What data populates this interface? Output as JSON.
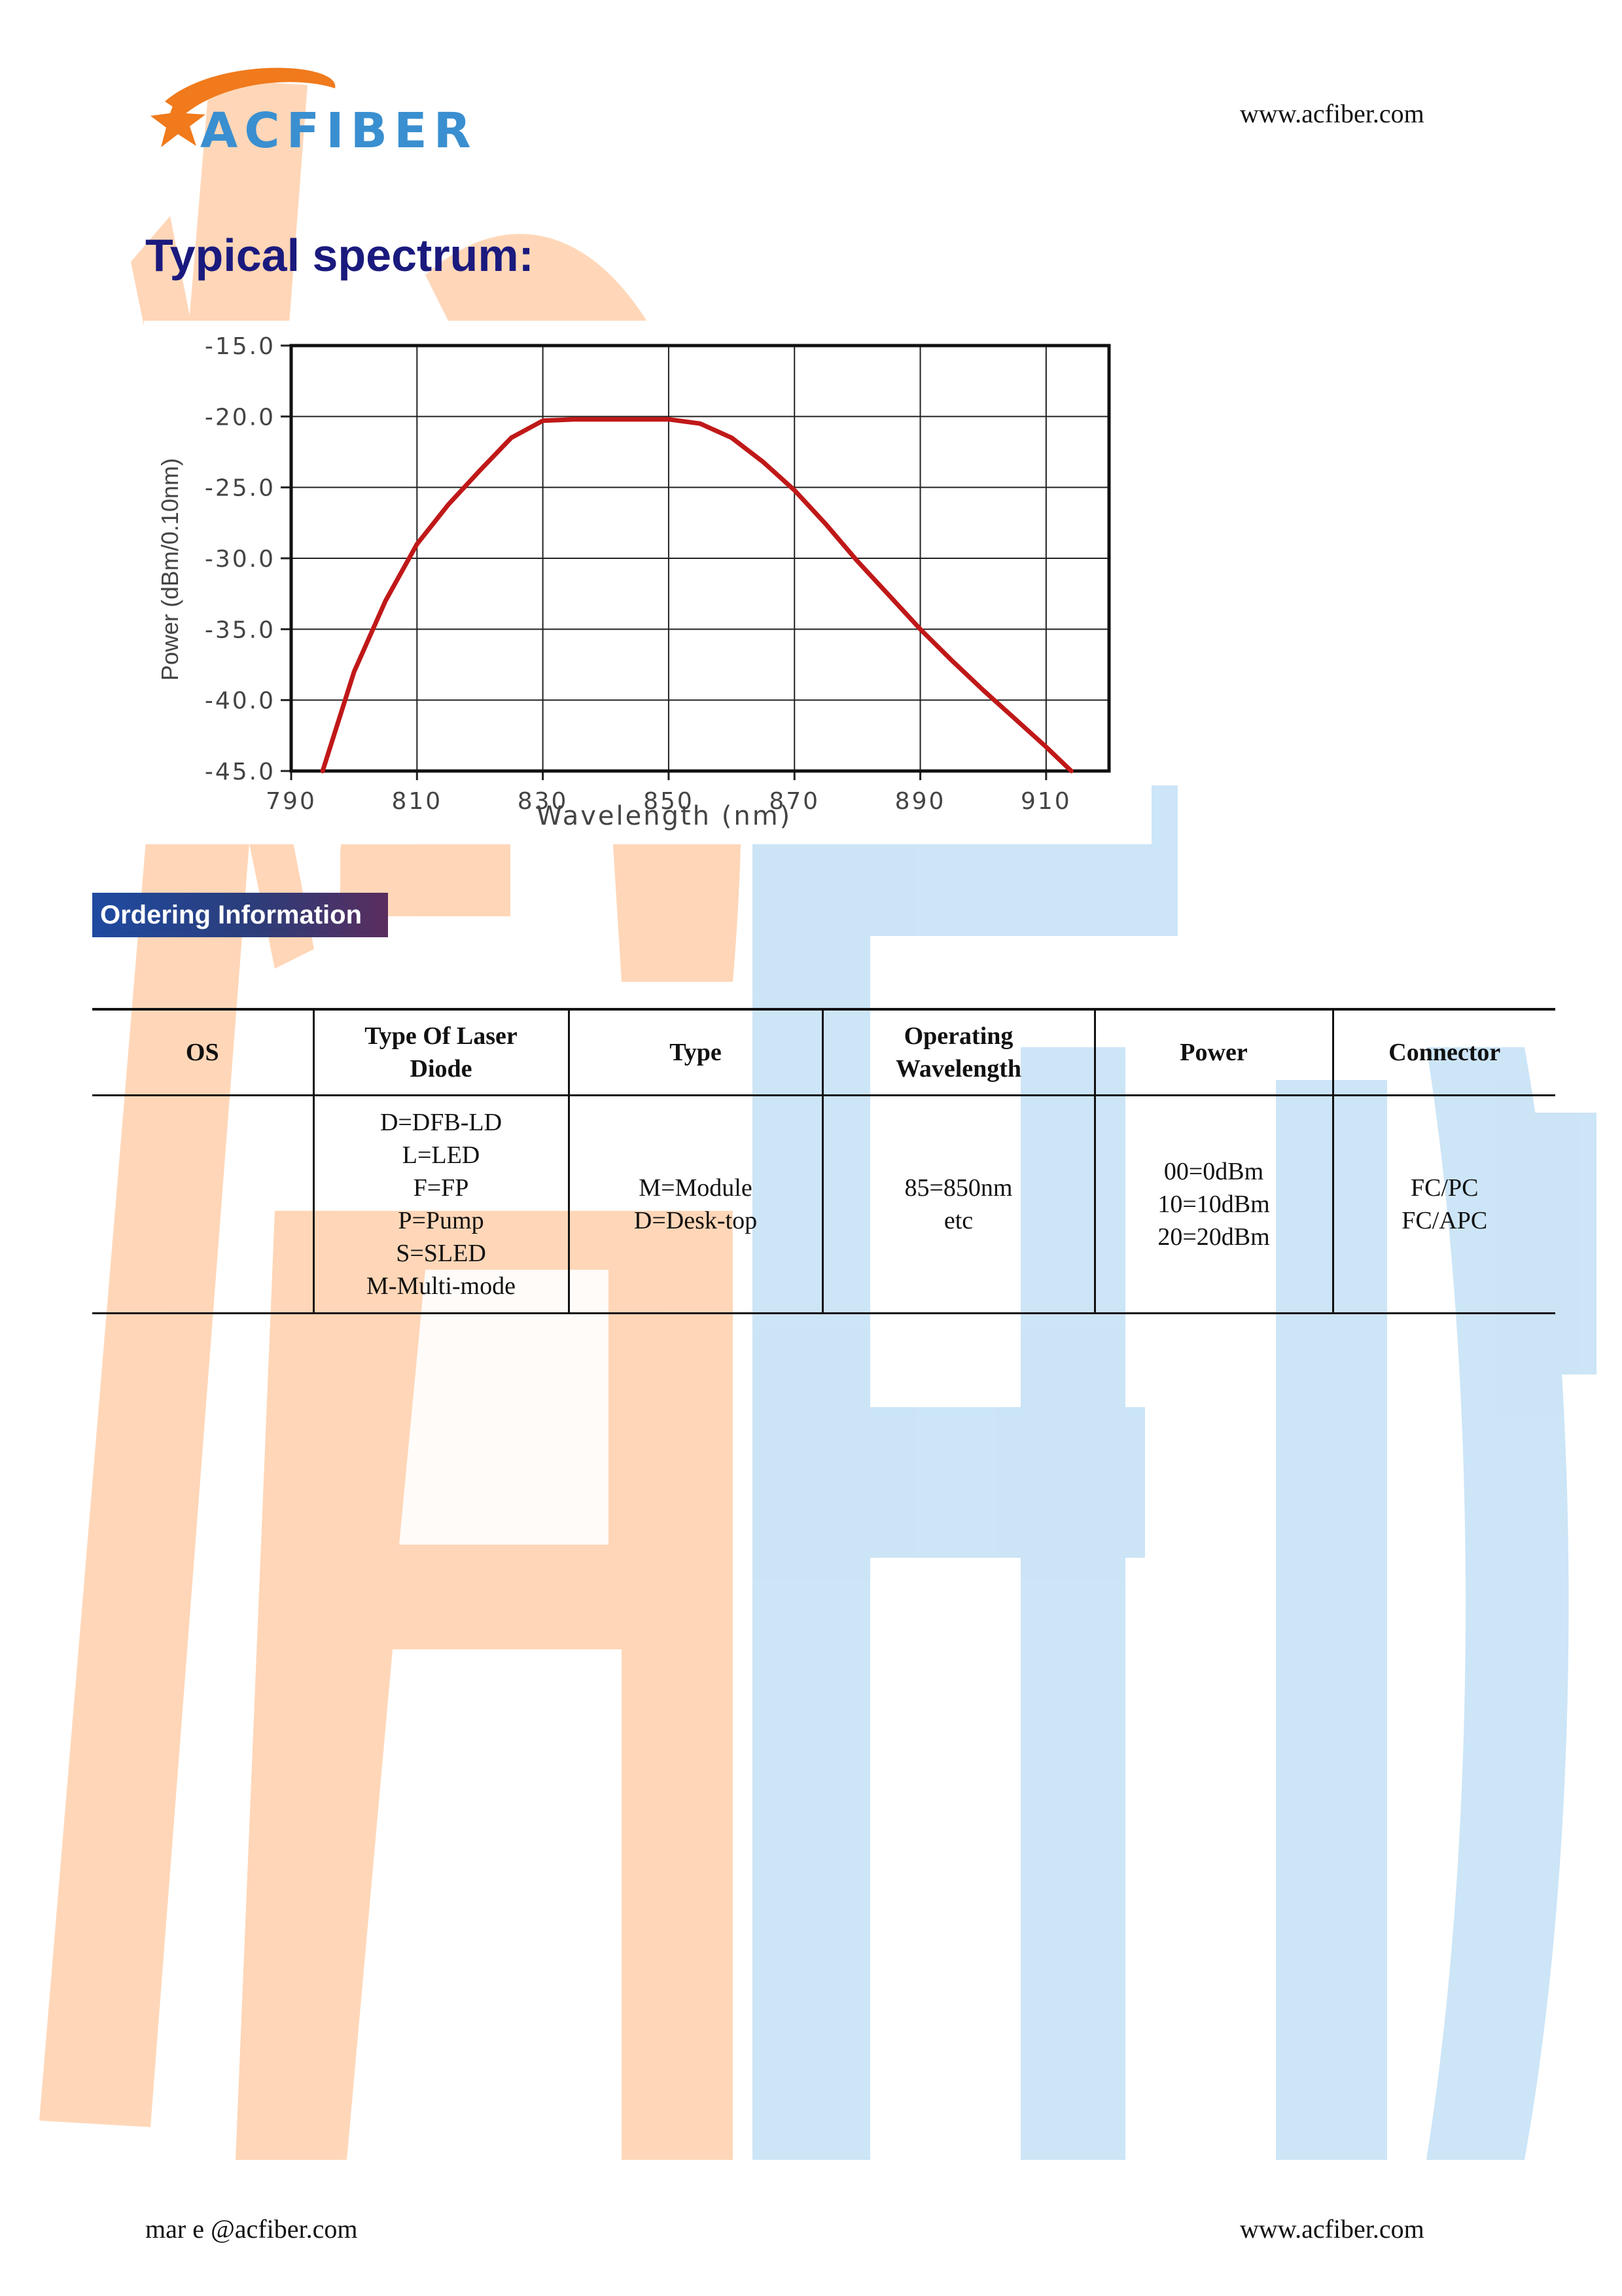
{
  "header": {
    "logo_text": "ACFIBER",
    "website": "www.acfiber.com"
  },
  "section_title": "Typical spectrum:",
  "chart_data": {
    "type": "line",
    "title": "",
    "xlabel": "Wavelength (nm)",
    "ylabel": "Power (dBm/0.10nm)",
    "xlim": [
      790,
      920
    ],
    "ylim": [
      -45,
      -15
    ],
    "x_ticks": [
      "790",
      "810",
      "830",
      "850",
      "870",
      "890",
      "910"
    ],
    "y_ticks": [
      "-15.0",
      "-20.0",
      "-25.0",
      "-30.0",
      "-35.0",
      "-40.0",
      "-45.0"
    ],
    "grid": true,
    "series": [
      {
        "color": "#c01818",
        "x": [
          795,
          800,
          805,
          810,
          815,
          820,
          825,
          830,
          835,
          840,
          845,
          850,
          855,
          860,
          865,
          870,
          875,
          880,
          885,
          890,
          895,
          900,
          905,
          910,
          914
        ],
        "y": [
          -45,
          -38,
          -33,
          -29,
          -26.2,
          -23.8,
          -21.5,
          -20.3,
          -20.2,
          -20.2,
          -20.2,
          -20.2,
          -20.5,
          -21.5,
          -23.2,
          -25.2,
          -27.6,
          -30.2,
          -32.6,
          -35.0,
          -37.2,
          -39.3,
          -41.3,
          -43.3,
          -45
        ]
      }
    ]
  },
  "ordering": {
    "badge": "Ordering Information",
    "headers": [
      "OS",
      "Type Of Laser\nDiode",
      "Type",
      "Operating\nWavelength",
      "Power",
      "Connector"
    ],
    "cells": [
      "",
      "D=DFB-LD\nL=LED\nF=FP\nP=Pump\nS=SLED\nM-Multi-mode",
      "M=Module\nD=Desk-top\n",
      "85=850nm\netc",
      "00=0dBm\n10=10dBm\n20=20dBm",
      "FC/PC\nFC/APC"
    ]
  },
  "footer": {
    "email": "mar  e @acfiber.com",
    "website": "www.acfiber.com"
  },
  "colors": {
    "watermark_orange": "#ffd0ab",
    "watermark_blue": "#c6e2f6",
    "title_navy": "#1a1a7e",
    "logo_orange": "#f07a1c",
    "logo_blue": "#3a8fd0"
  }
}
